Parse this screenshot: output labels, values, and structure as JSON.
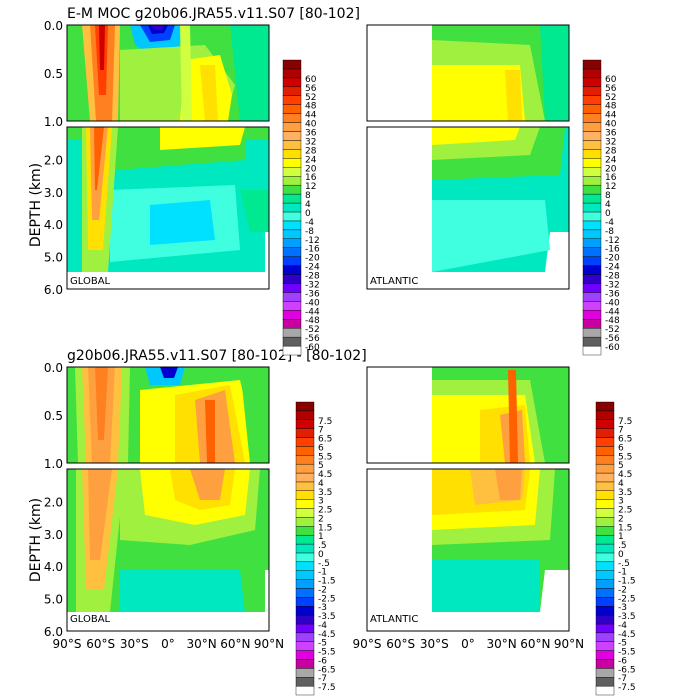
{
  "figure": {
    "title_top": "E-M MOC   g20b06.JRA55.v11.S07 [80-102]",
    "title_bottom": "g20b06.JRA55.v11.S07 [80-102]  -   [80-102]",
    "ylabel": "DEPTH (km)",
    "yticks": [
      "0.0",
      "0.5",
      "1.0",
      "2.0",
      "3.0",
      "4.0",
      "5.0",
      "6.0"
    ],
    "xticks": [
      "90°S",
      "60°S",
      "30°S",
      "0°",
      "30°N",
      "60°N",
      "90°N"
    ]
  },
  "colors": {
    "scale_top": [
      "#ffffff",
      "#606060",
      "#a8a8a8",
      "#c800a0",
      "#e000e0",
      "#d040ff",
      "#a040ff",
      "#7000ff",
      "#3000c8",
      "#0000d0",
      "#0040ff",
      "#0070ff",
      "#00a0ff",
      "#00c8ff",
      "#00e0ff",
      "#40ffe0",
      "#00e8c0",
      "#00e890",
      "#40e040",
      "#a0f040",
      "#d0ff40",
      "#ffff00",
      "#ffe000",
      "#ffc040",
      "#ffb060",
      "#ffa040",
      "#ff8020",
      "#ff6000",
      "#ff4000",
      "#e02000",
      "#d00000",
      "#b00000",
      "#880000"
    ],
    "scale_bottom": [
      "#ffffff",
      "#606060",
      "#a8a8a8",
      "#c800a0",
      "#e000e0",
      "#d040ff",
      "#a040ff",
      "#7000ff",
      "#3000c8",
      "#0000d0",
      "#0040ff",
      "#0070ff",
      "#00a0ff",
      "#00c8ff",
      "#00e0ff",
      "#40ffe0",
      "#00e8c0",
      "#00e890",
      "#40e040",
      "#a0f040",
      "#d0ff40",
      "#ffff00",
      "#ffe000",
      "#ffc040",
      "#ffb060",
      "#ffa040",
      "#ff8020",
      "#ff6000",
      "#ff4000",
      "#e02000",
      "#d00000",
      "#b00000",
      "#880000"
    ]
  },
  "chart_data": [
    {
      "type": "heatmap",
      "title": "E-M MOC   g20b06.JRA55.v11.S07 [80-102]",
      "panel_label": "GLOBAL",
      "ylabel": "DEPTH (km)",
      "xlim": [
        -90,
        90
      ],
      "ylim": [
        6.0,
        0.0
      ],
      "colorbar_levels": [
        "-60",
        "-56",
        "-52",
        "-48",
        "-44",
        "-40",
        "-36",
        "-32",
        "-28",
        "-24",
        "-20",
        "-16",
        "-12",
        "-8",
        "-4",
        "0",
        "4",
        "8",
        "12",
        "16",
        "20",
        "24",
        "28",
        "32",
        "36",
        "40",
        "44",
        "48",
        "52",
        "56",
        "60"
      ]
    },
    {
      "type": "heatmap",
      "title": "",
      "panel_label": "ATLANTIC",
      "xlim": [
        -90,
        90
      ],
      "ylim": [
        6.0,
        0.0
      ],
      "colorbar_levels": [
        "-60",
        "-56",
        "-52",
        "-48",
        "-44",
        "-40",
        "-36",
        "-32",
        "-28",
        "-24",
        "-20",
        "-16",
        "-12",
        "-8",
        "-4",
        "0",
        "4",
        "8",
        "12",
        "16",
        "20",
        "24",
        "28",
        "32",
        "36",
        "40",
        "44",
        "48",
        "52",
        "56",
        "60"
      ]
    },
    {
      "type": "heatmap",
      "title": "g20b06.JRA55.v11.S07 [80-102]  -   [80-102]",
      "panel_label": "GLOBAL",
      "ylabel": "DEPTH (km)",
      "xlim": [
        -90,
        90
      ],
      "ylim": [
        6.0,
        0.0
      ],
      "colorbar_levels": [
        "-7.5",
        "-7",
        "-6.5",
        "-6",
        "-5.5",
        "-5",
        "-4.5",
        "-4",
        "-3.5",
        "-3",
        "-2.5",
        "-2",
        "-1.5",
        "-1",
        "-.5",
        "0",
        ".5",
        "1",
        "1.5",
        "2",
        "2.5",
        "3",
        "3.5",
        "4",
        "4.5",
        "5",
        "5.5",
        "6",
        "6.5",
        "7",
        "7.5"
      ]
    },
    {
      "type": "heatmap",
      "title": "",
      "panel_label": "ATLANTIC",
      "xlim": [
        -90,
        90
      ],
      "ylim": [
        6.0,
        0.0
      ],
      "colorbar_levels": [
        "-7.5",
        "-7",
        "-6.5",
        "-6",
        "-5.5",
        "-5",
        "-4.5",
        "-4",
        "-3.5",
        "-3",
        "-2.5",
        "-2",
        "-1.5",
        "-1",
        "-.5",
        "0",
        ".5",
        "1",
        "1.5",
        "2",
        "2.5",
        "3",
        "3.5",
        "4",
        "4.5",
        "5",
        "5.5",
        "6",
        "6.5",
        "7",
        "7.5"
      ]
    }
  ]
}
